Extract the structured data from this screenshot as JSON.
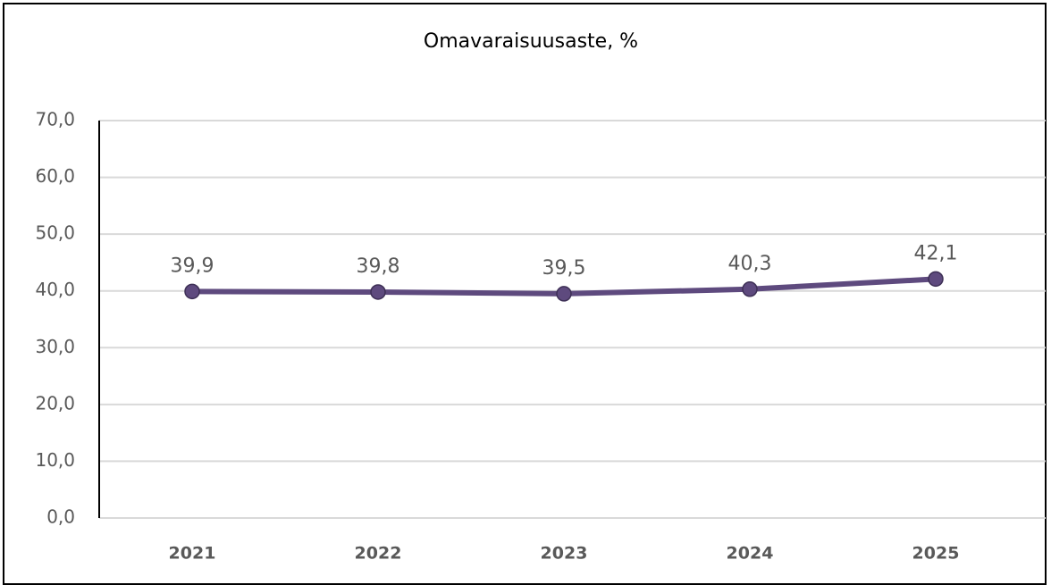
{
  "chart_data": {
    "type": "line",
    "title": "Omavaraisuusaste, %",
    "categories": [
      "2021",
      "2022",
      "2023",
      "2024",
      "2025"
    ],
    "series": [
      {
        "name": "Omavaraisuusaste",
        "color": "#5e4a7e",
        "values": [
          39.9,
          39.8,
          39.5,
          40.3,
          42.1
        ],
        "value_labels": [
          "39,9",
          "39,8",
          "39,5",
          "40,3",
          "42,1"
        ]
      }
    ],
    "ylim": [
      0,
      70
    ],
    "yticks": [
      {
        "value": 0,
        "label": "0,0"
      },
      {
        "value": 10,
        "label": "10,0"
      },
      {
        "value": 20,
        "label": "20,0"
      },
      {
        "value": 30,
        "label": "30,0"
      },
      {
        "value": 40,
        "label": "40,0"
      },
      {
        "value": 50,
        "label": "50,0"
      },
      {
        "value": 60,
        "label": "60,0"
      },
      {
        "value": 70,
        "label": "70,0"
      }
    ],
    "grid": true
  }
}
